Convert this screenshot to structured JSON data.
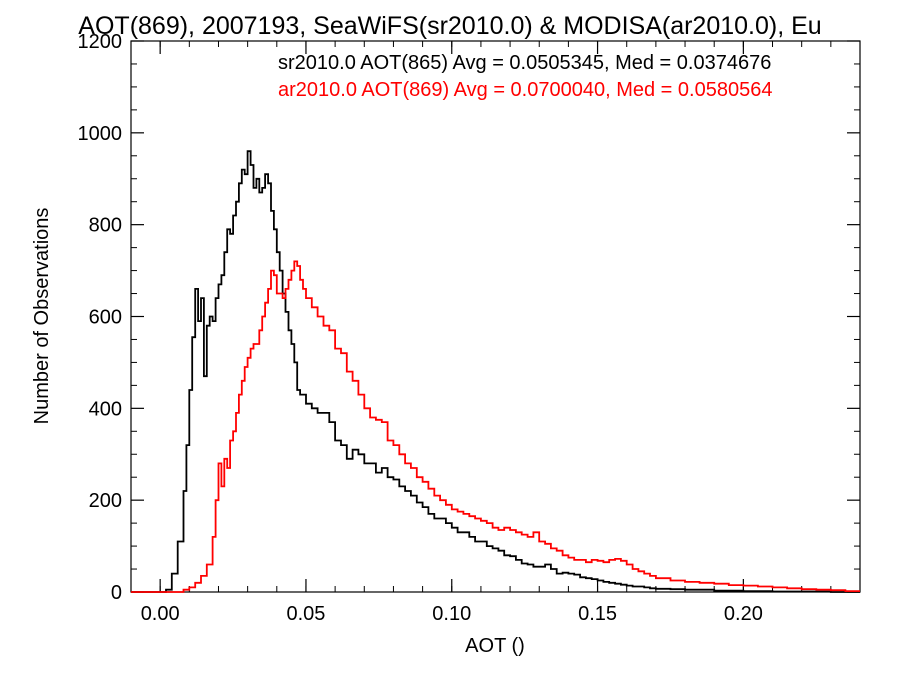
{
  "chart_data": {
    "type": "line",
    "title": "AOT(869), 2007193, SeaWiFS(sr2010.0) & MODISA(ar2010.0), Eu",
    "xlabel": "AOT ()",
    "ylabel": "Number of Observations",
    "xlim": [
      -0.01,
      0.24
    ],
    "ylim": [
      0,
      1200
    ],
    "xticks": [
      0.0,
      0.05,
      0.1,
      0.15,
      0.2
    ],
    "xtick_labels": [
      "0.00",
      "0.05",
      "0.10",
      "0.15",
      "0.20"
    ],
    "yticks": [
      0,
      200,
      400,
      600,
      800,
      1000,
      1200
    ],
    "ytick_labels": [
      "0",
      "200",
      "400",
      "600",
      "800",
      "1000",
      "1200"
    ],
    "grid": false,
    "legend": "top-right",
    "series": [
      {
        "name": "sr2010.0 AOT(865) Avg = 0.0505345, Med = 0.0374676",
        "color": "#000000",
        "points": [
          [
            -0.01,
            0
          ],
          [
            0.0,
            0
          ],
          [
            0.002,
            5
          ],
          [
            0.004,
            40
          ],
          [
            0.006,
            110
          ],
          [
            0.008,
            220
          ],
          [
            0.009,
            320
          ],
          [
            0.01,
            440
          ],
          [
            0.011,
            555
          ],
          [
            0.012,
            660
          ],
          [
            0.013,
            590
          ],
          [
            0.014,
            640
          ],
          [
            0.015,
            470
          ],
          [
            0.016,
            580
          ],
          [
            0.017,
            600
          ],
          [
            0.018,
            590
          ],
          [
            0.019,
            640
          ],
          [
            0.02,
            670
          ],
          [
            0.021,
            690
          ],
          [
            0.022,
            740
          ],
          [
            0.023,
            790
          ],
          [
            0.024,
            780
          ],
          [
            0.025,
            820
          ],
          [
            0.026,
            850
          ],
          [
            0.027,
            890
          ],
          [
            0.028,
            920
          ],
          [
            0.029,
            910
          ],
          [
            0.03,
            960
          ],
          [
            0.031,
            930
          ],
          [
            0.032,
            880
          ],
          [
            0.033,
            900
          ],
          [
            0.034,
            870
          ],
          [
            0.035,
            880
          ],
          [
            0.036,
            910
          ],
          [
            0.037,
            890
          ],
          [
            0.038,
            830
          ],
          [
            0.039,
            790
          ],
          [
            0.04,
            740
          ],
          [
            0.041,
            700
          ],
          [
            0.042,
            650
          ],
          [
            0.043,
            610
          ],
          [
            0.044,
            570
          ],
          [
            0.045,
            540
          ],
          [
            0.046,
            500
          ],
          [
            0.047,
            440
          ],
          [
            0.048,
            430
          ],
          [
            0.05,
            410
          ],
          [
            0.052,
            400
          ],
          [
            0.054,
            390
          ],
          [
            0.056,
            390
          ],
          [
            0.058,
            370
          ],
          [
            0.06,
            330
          ],
          [
            0.062,
            320
          ],
          [
            0.064,
            290
          ],
          [
            0.066,
            310
          ],
          [
            0.068,
            300
          ],
          [
            0.07,
            280
          ],
          [
            0.072,
            280
          ],
          [
            0.074,
            260
          ],
          [
            0.076,
            270
          ],
          [
            0.078,
            250
          ],
          [
            0.08,
            245
          ],
          [
            0.082,
            230
          ],
          [
            0.084,
            220
          ],
          [
            0.086,
            210
          ],
          [
            0.088,
            195
          ],
          [
            0.09,
            185
          ],
          [
            0.092,
            170
          ],
          [
            0.094,
            160
          ],
          [
            0.096,
            160
          ],
          [
            0.098,
            150
          ],
          [
            0.1,
            140
          ],
          [
            0.102,
            130
          ],
          [
            0.104,
            130
          ],
          [
            0.106,
            120
          ],
          [
            0.108,
            110
          ],
          [
            0.11,
            110
          ],
          [
            0.112,
            100
          ],
          [
            0.114,
            95
          ],
          [
            0.116,
            90
          ],
          [
            0.118,
            80
          ],
          [
            0.12,
            78
          ],
          [
            0.122,
            70
          ],
          [
            0.124,
            62
          ],
          [
            0.126,
            60
          ],
          [
            0.128,
            55
          ],
          [
            0.13,
            55
          ],
          [
            0.132,
            60
          ],
          [
            0.134,
            50
          ],
          [
            0.136,
            40
          ],
          [
            0.138,
            42
          ],
          [
            0.14,
            40
          ],
          [
            0.142,
            38
          ],
          [
            0.144,
            32
          ],
          [
            0.146,
            30
          ],
          [
            0.148,
            28
          ],
          [
            0.15,
            25
          ],
          [
            0.152,
            22
          ],
          [
            0.154,
            20
          ],
          [
            0.156,
            18
          ],
          [
            0.158,
            16
          ],
          [
            0.16,
            14
          ],
          [
            0.162,
            12
          ],
          [
            0.164,
            12
          ],
          [
            0.166,
            10
          ],
          [
            0.168,
            8
          ],
          [
            0.17,
            7
          ],
          [
            0.175,
            6
          ],
          [
            0.18,
            5
          ],
          [
            0.19,
            3
          ],
          [
            0.2,
            2
          ],
          [
            0.21,
            1
          ],
          [
            0.22,
            1
          ],
          [
            0.23,
            0
          ],
          [
            0.24,
            0
          ]
        ]
      },
      {
        "name": "ar2010.0 AOT(869) Avg = 0.0700040, Med = 0.0580564",
        "color": "#ff0000",
        "points": [
          [
            -0.01,
            0
          ],
          [
            0.0,
            0
          ],
          [
            0.005,
            0
          ],
          [
            0.008,
            5
          ],
          [
            0.01,
            10
          ],
          [
            0.012,
            20
          ],
          [
            0.014,
            35
          ],
          [
            0.016,
            60
          ],
          [
            0.018,
            120
          ],
          [
            0.019,
            200
          ],
          [
            0.02,
            280
          ],
          [
            0.021,
            230
          ],
          [
            0.022,
            290
          ],
          [
            0.023,
            270
          ],
          [
            0.024,
            330
          ],
          [
            0.025,
            350
          ],
          [
            0.026,
            390
          ],
          [
            0.027,
            430
          ],
          [
            0.028,
            460
          ],
          [
            0.029,
            490
          ],
          [
            0.03,
            510
          ],
          [
            0.031,
            530
          ],
          [
            0.032,
            540
          ],
          [
            0.033,
            540
          ],
          [
            0.034,
            570
          ],
          [
            0.035,
            600
          ],
          [
            0.036,
            630
          ],
          [
            0.037,
            660
          ],
          [
            0.038,
            700
          ],
          [
            0.039,
            690
          ],
          [
            0.04,
            650
          ],
          [
            0.041,
            650
          ],
          [
            0.042,
            640
          ],
          [
            0.043,
            660
          ],
          [
            0.044,
            680
          ],
          [
            0.045,
            700
          ],
          [
            0.046,
            720
          ],
          [
            0.047,
            710
          ],
          [
            0.048,
            680
          ],
          [
            0.049,
            660
          ],
          [
            0.05,
            640
          ],
          [
            0.052,
            620
          ],
          [
            0.054,
            600
          ],
          [
            0.056,
            580
          ],
          [
            0.058,
            570
          ],
          [
            0.06,
            530
          ],
          [
            0.062,
            520
          ],
          [
            0.064,
            480
          ],
          [
            0.066,
            460
          ],
          [
            0.068,
            430
          ],
          [
            0.07,
            400
          ],
          [
            0.072,
            380
          ],
          [
            0.074,
            375
          ],
          [
            0.076,
            370
          ],
          [
            0.078,
            330
          ],
          [
            0.08,
            320
          ],
          [
            0.082,
            300
          ],
          [
            0.084,
            280
          ],
          [
            0.086,
            270
          ],
          [
            0.088,
            250
          ],
          [
            0.09,
            240
          ],
          [
            0.092,
            225
          ],
          [
            0.094,
            210
          ],
          [
            0.096,
            200
          ],
          [
            0.098,
            190
          ],
          [
            0.1,
            180
          ],
          [
            0.102,
            175
          ],
          [
            0.104,
            170
          ],
          [
            0.106,
            165
          ],
          [
            0.108,
            160
          ],
          [
            0.11,
            155
          ],
          [
            0.112,
            150
          ],
          [
            0.114,
            140
          ],
          [
            0.116,
            135
          ],
          [
            0.118,
            140
          ],
          [
            0.12,
            135
          ],
          [
            0.122,
            130
          ],
          [
            0.124,
            125
          ],
          [
            0.126,
            120
          ],
          [
            0.128,
            130
          ],
          [
            0.13,
            110
          ],
          [
            0.132,
            105
          ],
          [
            0.134,
            95
          ],
          [
            0.136,
            90
          ],
          [
            0.138,
            80
          ],
          [
            0.14,
            75
          ],
          [
            0.142,
            70
          ],
          [
            0.144,
            70
          ],
          [
            0.146,
            65
          ],
          [
            0.148,
            70
          ],
          [
            0.15,
            68
          ],
          [
            0.152,
            65
          ],
          [
            0.154,
            70
          ],
          [
            0.156,
            72
          ],
          [
            0.158,
            68
          ],
          [
            0.16,
            60
          ],
          [
            0.162,
            50
          ],
          [
            0.164,
            45
          ],
          [
            0.166,
            40
          ],
          [
            0.168,
            35
          ],
          [
            0.17,
            30
          ],
          [
            0.175,
            25
          ],
          [
            0.18,
            22
          ],
          [
            0.185,
            20
          ],
          [
            0.19,
            18
          ],
          [
            0.195,
            15
          ],
          [
            0.2,
            14
          ],
          [
            0.205,
            12
          ],
          [
            0.21,
            10
          ],
          [
            0.215,
            8
          ],
          [
            0.22,
            6
          ],
          [
            0.225,
            5
          ],
          [
            0.23,
            4
          ],
          [
            0.235,
            2
          ],
          [
            0.24,
            2
          ]
        ]
      }
    ]
  }
}
